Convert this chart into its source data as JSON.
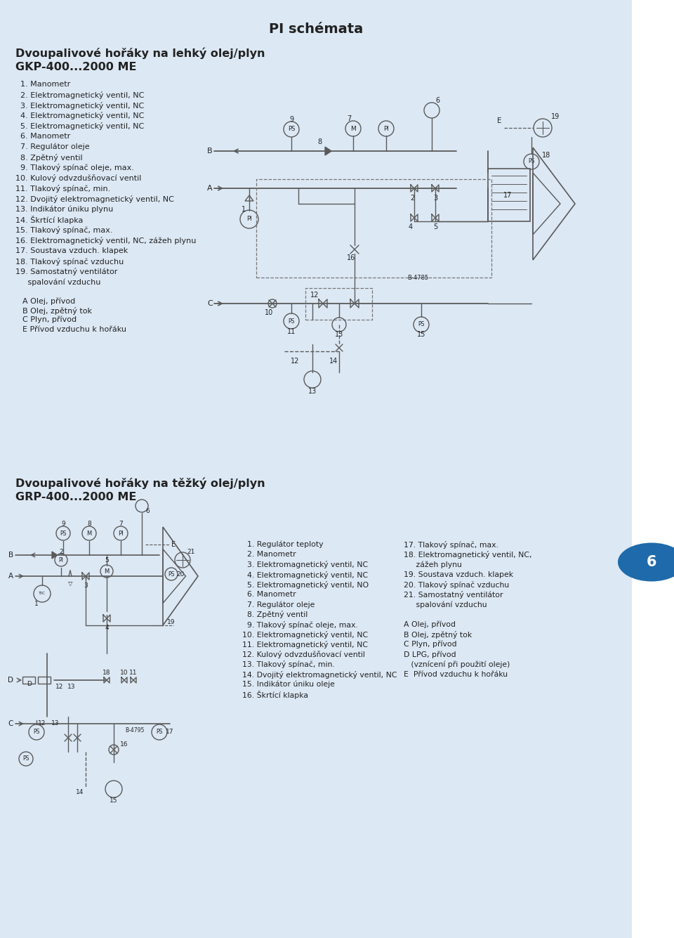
{
  "title": "PI schémata",
  "bg_color": "#dce8f4",
  "white_color": "#ffffff",
  "right_tab_color": "#1e6aab",
  "right_tab_text": "6",
  "section1_title": "Dvoupalivové hořáky na lehký olej/plyn",
  "section1_subtitle": "GKP-400...2000 ME",
  "section1_items": [
    "  1. Manometr",
    "  2. Elektromagnetický ventil, NC",
    "  3. Elektromagnetický ventil, NC",
    "  4. Elektromagnetický ventil, NC",
    "  5. Elektromagnetický ventil, NC",
    "  6. Manometr",
    "  7. Regulátor oleje",
    "  8. Zpětný ventil",
    "  9. Tlakový spínač oleje, max.",
    "10. Kulový odvzdušňovací ventil",
    "11. Tlakový spínač, min.",
    "12. Dvojitý elektromagnetický ventil, NC",
    "13. Indikátor úniku plynu",
    "14. Škrtící klapka",
    "15. Tlakový spínač, max.",
    "16. Elektromagnetický ventil, NC, zážeh plynu",
    "17. Soustava vzduch. klapek",
    "18. Tlakový spínač vzduchu",
    "19. Samostatný ventilátor",
    "     spalování vzduchu"
  ],
  "section1_legend": [
    "A Olej, přívod",
    "B Olej, zpětný tok",
    "C Plyn, přívod",
    "E Přívod vzduchu k hořáku"
  ],
  "section2_title": "Dvoupalivové hořáky na těžký olej/plyn",
  "section2_subtitle": "GRP-400...2000 ME",
  "section2_items_left": [
    "  1. Regulátor teploty",
    "  2. Manometr",
    "  3. Elektromagnetický ventil, NC",
    "  4. Elektromagnetický ventil, NC",
    "  5. Elektromagnetický ventil, NO",
    "  6. Manometr",
    "  7. Regulátor oleje",
    "  8. Zpětný ventil",
    "  9. Tlakový spínač oleje, max.",
    "10. Elektromagnetický ventil, NC",
    "11. Elektromagnetický ventil, NC",
    "12. Kulový odvzdušňovací ventil",
    "13. Tlakový spínač, min.",
    "14. Dvojitý elektromagnetický ventil, NC",
    "15. Indikátor úniku oleje",
    "16. Škrtící klapka"
  ],
  "section2_items_right_a": [
    "17. Tlakový spínač, max.",
    "18. Elektromagnetický ventil, NC,",
    "     zážeh plynu",
    "19. Soustava vzduch. klapek",
    "20. Tlakový spínač vzduchu",
    "21. Samostatný ventilátor",
    "     spalování vzduchu"
  ],
  "section2_legend_right": [
    "A Olej, přívod",
    "B Olej, zpětný tok",
    "C Plyn, přívod",
    "D LPG, přívod",
    "   (vznícení při použití oleje)",
    "E  Přívod vzduchu k hořáku"
  ],
  "lc": "#5a5a5a",
  "tc": "#222222",
  "lc2": "#6a6a6a"
}
